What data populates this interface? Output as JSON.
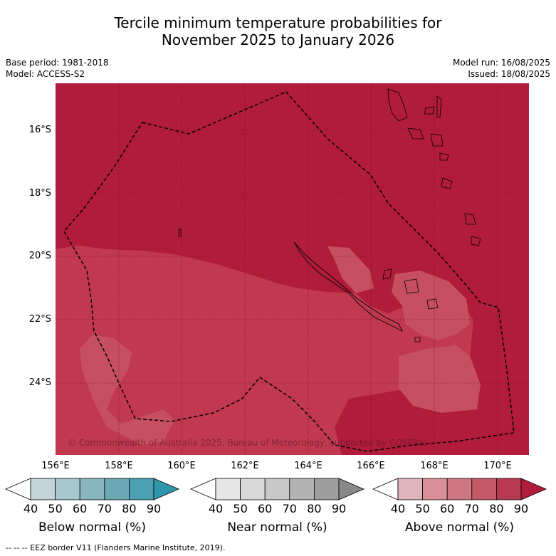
{
  "title": {
    "line1": "Tercile minimum temperature probabilities for",
    "line2": "November 2025 to January 2026"
  },
  "meta_left": {
    "base_period": "Base period: 1981-2018",
    "model": "Model: ACCESS-S2"
  },
  "meta_right": {
    "model_run": "Model run: 16/08/2025",
    "issued": "Issued: 18/08/2025"
  },
  "map": {
    "y_ticks": [
      "16°S",
      "18°S",
      "20°S",
      "22°S",
      "24°S"
    ],
    "x_ticks": [
      "156°E",
      "158°E",
      "160°E",
      "162°E",
      "164°E",
      "166°E",
      "168°E",
      "170°E"
    ],
    "colors": {
      "above_90": "#b01c3a",
      "above_80": "#c0394f",
      "above_70": "#c6505f",
      "border": "#000000"
    },
    "copyright": "© Commonwealth of Australia 2025, Bureau of Meteorology, supported by COSPPac"
  },
  "colorbars": [
    {
      "label": "Below normal (%)",
      "ticks": [
        "40",
        "50",
        "60",
        "70",
        "80",
        "90"
      ],
      "colors": [
        "#ffffff",
        "#c0d4da",
        "#a6c8ce",
        "#87b6c0",
        "#6aa8b4",
        "#4aa0b0",
        "#2f97aa"
      ]
    },
    {
      "label": "Near normal (%)",
      "ticks": [
        "40",
        "50",
        "60",
        "70",
        "80",
        "90"
      ],
      "colors": [
        "#ffffff",
        "#e6e6e6",
        "#d9d9d9",
        "#c8c8c8",
        "#b3b3b3",
        "#9e9e9e",
        "#888888"
      ]
    },
    {
      "label": "Above normal (%)",
      "ticks": [
        "40",
        "50",
        "60",
        "70",
        "80",
        "90"
      ],
      "colors": [
        "#ffffff",
        "#e0b4bc",
        "#d98f98",
        "#cf7781",
        "#c55866",
        "#b83a50",
        "#b01c3a"
      ]
    }
  ],
  "footer": "--  --  -- EEZ border V11 (Flanders Marine Institute, 2019)."
}
